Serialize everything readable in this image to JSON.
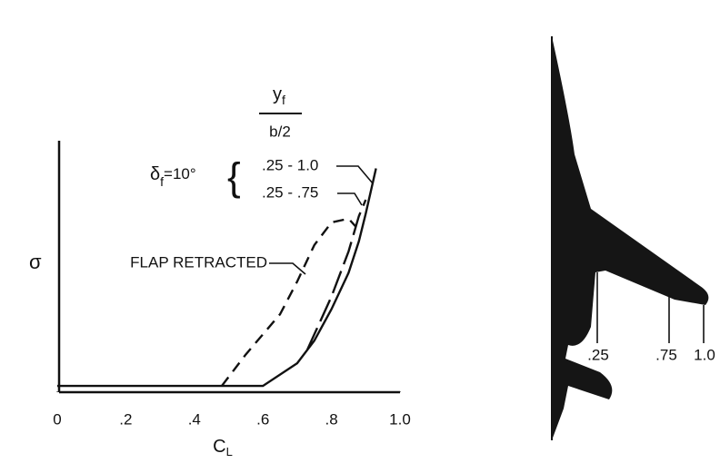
{
  "chart_data": {
    "type": "line",
    "ylabel": "σ",
    "xlabel": {
      "base": "C",
      "sub": "L"
    },
    "xlim": [
      0,
      1.0
    ],
    "xticks": [
      0,
      {
        "value": 0.2,
        "label": ".2"
      },
      {
        "value": 0.4,
        "label": ".4"
      },
      {
        "value": 0.6,
        "label": ".6"
      },
      {
        "value": 0.8,
        "label": ".8"
      },
      {
        "value": 1.0,
        "label": "1.0"
      }
    ],
    "ylim": [
      0,
      10
    ],
    "yticks": [],
    "grid": false,
    "legend_title": {
      "numerator": {
        "base": "y",
        "sub": "f"
      },
      "denominator": "b/2"
    },
    "deflection": {
      "symbol": "δ",
      "sub": "f",
      "value": "=10°"
    },
    "series": [
      {
        "name": ".25 - 1.0",
        "color": "#111111",
        "dash": "solid",
        "x": [
          0,
          0.6,
          0.7,
          0.75,
          0.8,
          0.85,
          0.88,
          0.9,
          0.93
        ],
        "values": [
          0.25,
          0.25,
          1.15,
          2.05,
          3.3,
          4.75,
          6.0,
          7.1,
          8.9
        ]
      },
      {
        "name": ".25 - .75",
        "color": "#111111",
        "dash": "long",
        "x": [
          0.73,
          0.75,
          0.8,
          0.85,
          0.88,
          0.9
        ],
        "values": [
          1.7,
          2.3,
          3.8,
          5.6,
          7.0,
          7.65
        ]
      },
      {
        "name": "FLAP RETRACTED",
        "color": "#111111",
        "dash": "short",
        "x": [
          0.48,
          0.55,
          0.65,
          0.7,
          0.75,
          0.8,
          0.85,
          0.87
        ],
        "values": [
          0.25,
          1.5,
          3.1,
          4.4,
          5.85,
          6.75,
          6.9,
          6.6
        ]
      }
    ]
  },
  "planform": {
    "stations": [
      ".25",
      ".75",
      "1.0"
    ]
  }
}
